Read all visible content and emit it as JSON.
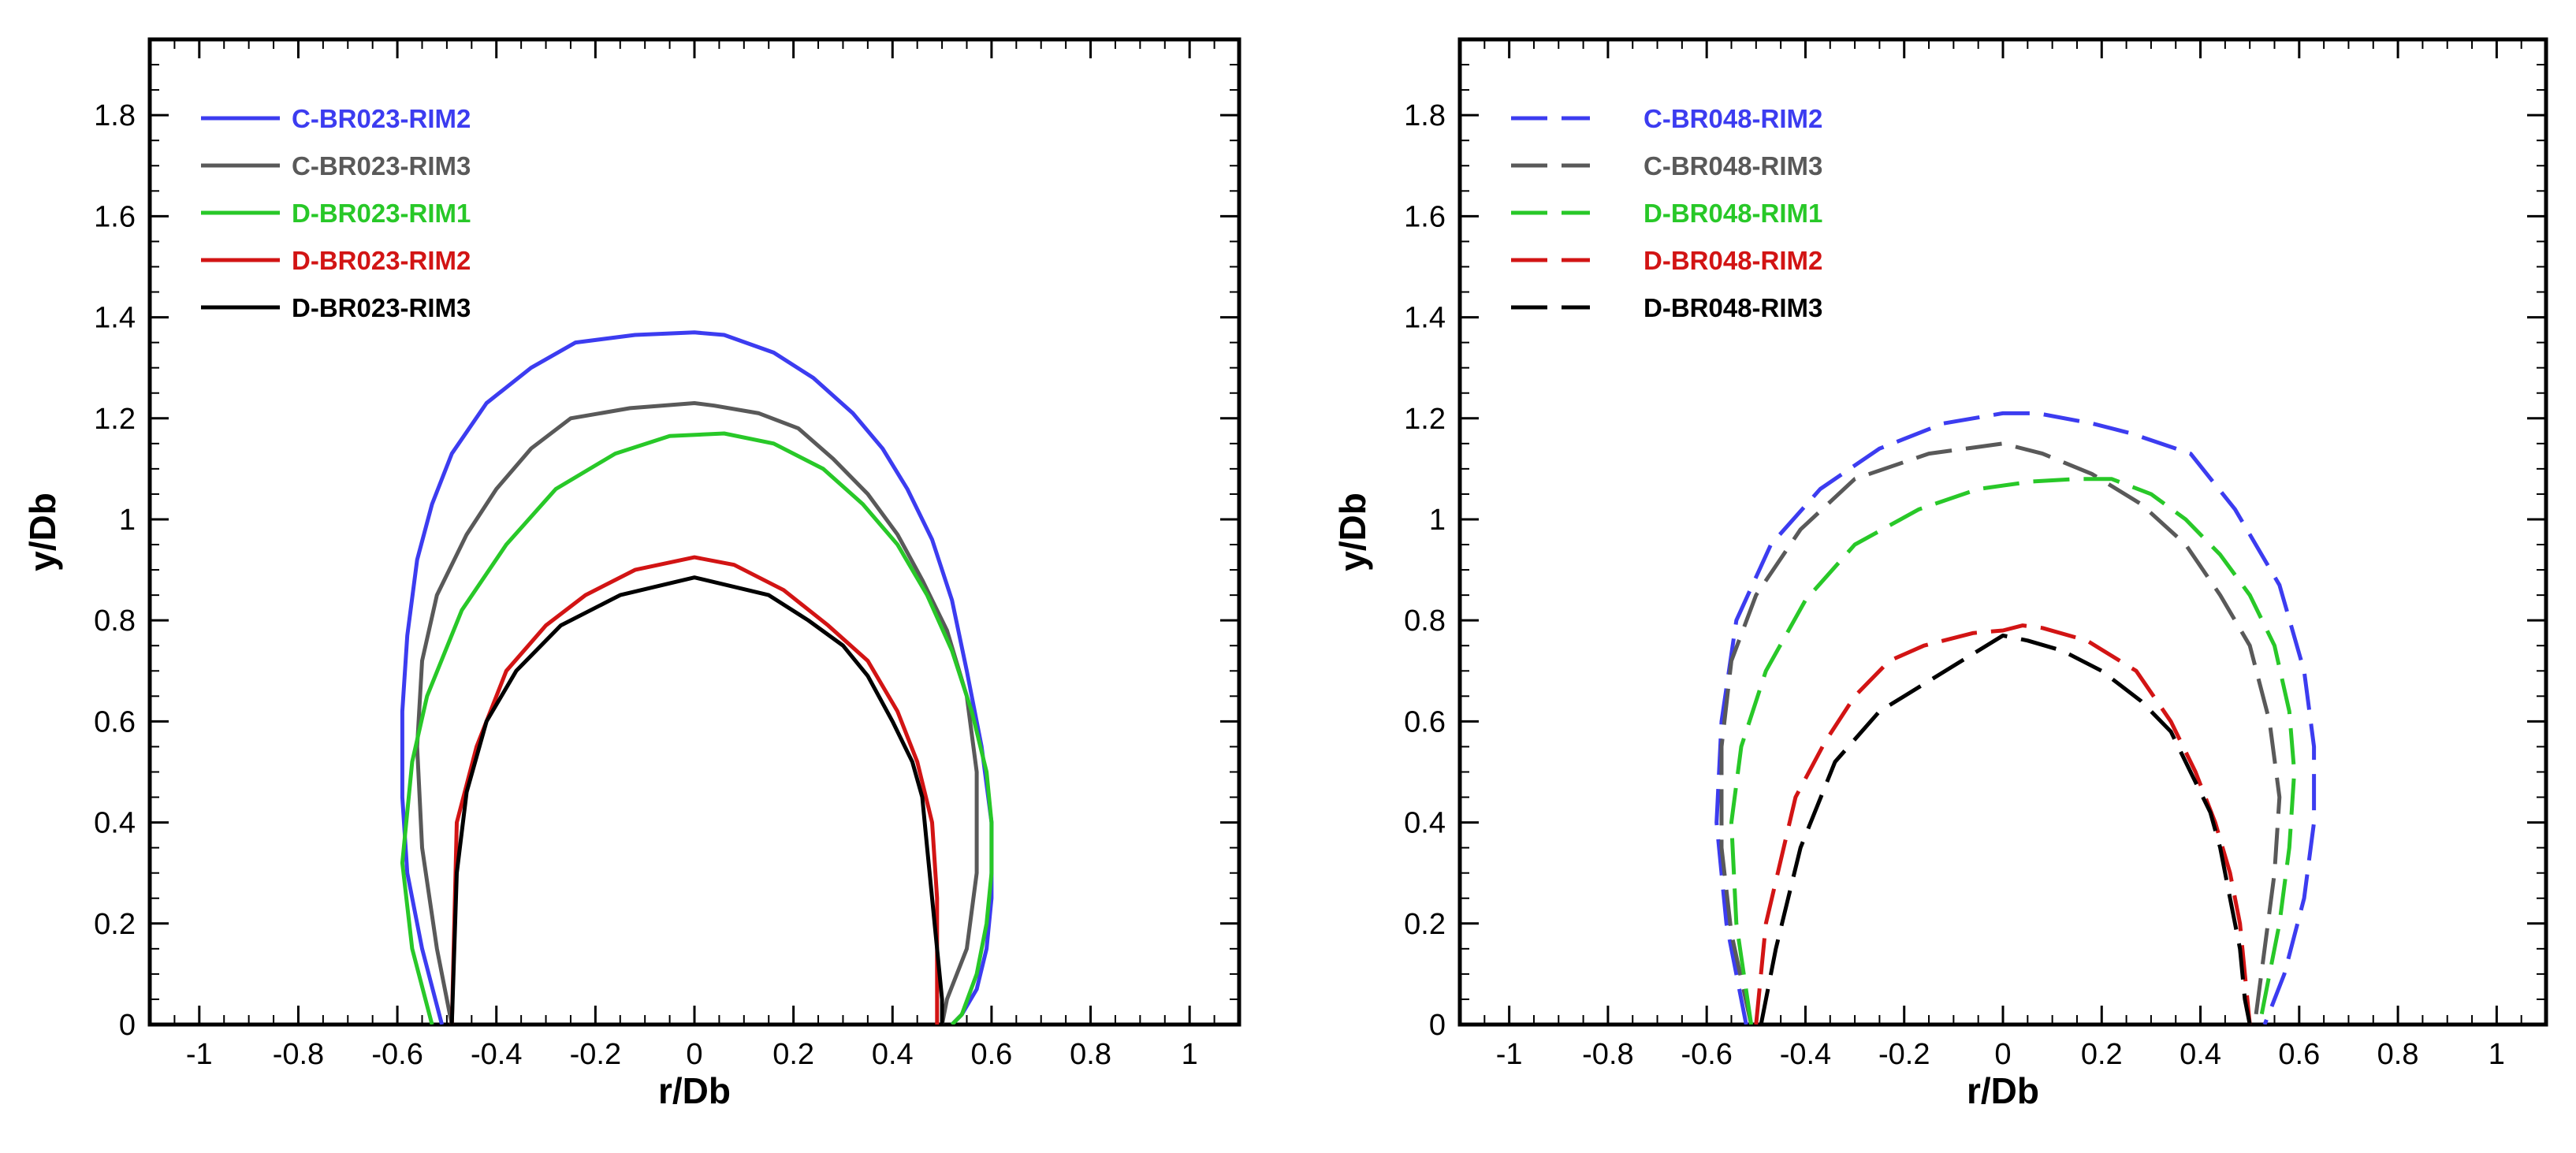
{
  "chart_data": [
    {
      "type": "line",
      "xlabel": "r/Db",
      "ylabel": "y/Db",
      "xlim": [
        -1.1,
        1.1
      ],
      "ylim": [
        0,
        1.95
      ],
      "xticks": [
        -1,
        -0.8,
        -0.6,
        -0.4,
        -0.2,
        0,
        0.2,
        0.4,
        0.6,
        0.8,
        1
      ],
      "xtick_labels": [
        "-1",
        "-0.8",
        "-0.6",
        "-0.4",
        "-0.2",
        "0",
        "0.2",
        "0.4",
        "0.6",
        "0.8",
        "1"
      ],
      "yticks": [
        0,
        0.2,
        0.4,
        0.6,
        0.8,
        1,
        1.2,
        1.4,
        1.6,
        1.8
      ],
      "ytick_labels": [
        "0",
        "0.2",
        "0.4",
        "0.6",
        "0.8",
        "1",
        "1.2",
        "1.4",
        "1.6",
        "1.8"
      ],
      "legend_position": "top-left",
      "series": [
        {
          "name": "C-BR023-RIM2",
          "color": "#3c3cf0",
          "dash": "solid",
          "x": [
            -0.51,
            -0.55,
            -0.58,
            -0.59,
            -0.59,
            -0.58,
            -0.56,
            -0.53,
            -0.49,
            -0.42,
            -0.33,
            -0.24,
            -0.12,
            0.0,
            0.06,
            0.16,
            0.24,
            0.32,
            0.38,
            0.43,
            0.48,
            0.52,
            0.55,
            0.58,
            0.6,
            0.6,
            0.59,
            0.57,
            0.54,
            0.52
          ],
          "y": [
            0,
            0.15,
            0.3,
            0.45,
            0.62,
            0.77,
            0.92,
            1.03,
            1.13,
            1.23,
            1.3,
            1.35,
            1.365,
            1.37,
            1.365,
            1.33,
            1.28,
            1.21,
            1.14,
            1.06,
            0.96,
            0.84,
            0.7,
            0.55,
            0.4,
            0.25,
            0.15,
            0.07,
            0.02,
            0
          ]
        },
        {
          "name": "C-BR023-RIM3",
          "color": "#595959",
          "dash": "solid",
          "x": [
            -0.49,
            -0.52,
            -0.55,
            -0.56,
            -0.55,
            -0.52,
            -0.46,
            -0.4,
            -0.33,
            -0.25,
            -0.13,
            0.0,
            0.04,
            0.13,
            0.21,
            0.28,
            0.35,
            0.41,
            0.46,
            0.51,
            0.55,
            0.57,
            0.57,
            0.55,
            0.51,
            0.5
          ],
          "y": [
            0,
            0.15,
            0.35,
            0.55,
            0.72,
            0.85,
            0.97,
            1.06,
            1.14,
            1.2,
            1.22,
            1.23,
            1.225,
            1.21,
            1.18,
            1.12,
            1.05,
            0.97,
            0.88,
            0.78,
            0.65,
            0.5,
            0.3,
            0.15,
            0.05,
            0
          ]
        },
        {
          "name": "D-BR023-RIM1",
          "color": "#28c828",
          "dash": "solid",
          "x": [
            -0.53,
            -0.57,
            -0.59,
            -0.57,
            -0.54,
            -0.47,
            -0.38,
            -0.28,
            -0.16,
            -0.05,
            0.06,
            0.16,
            0.26,
            0.34,
            0.41,
            0.47,
            0.52,
            0.56,
            0.59,
            0.6,
            0.6,
            0.59,
            0.57,
            0.54,
            0.52
          ],
          "y": [
            0,
            0.15,
            0.32,
            0.52,
            0.65,
            0.82,
            0.95,
            1.06,
            1.13,
            1.165,
            1.17,
            1.15,
            1.1,
            1.03,
            0.95,
            0.85,
            0.74,
            0.62,
            0.5,
            0.4,
            0.3,
            0.2,
            0.1,
            0.02,
            0
          ]
        },
        {
          "name": "D-BR023-RIM2",
          "color": "#d21414",
          "dash": "solid",
          "x": [
            -0.49,
            -0.48,
            -0.44,
            -0.38,
            -0.3,
            -0.22,
            -0.12,
            0.0,
            0.08,
            0.18,
            0.27,
            0.35,
            0.41,
            0.45,
            0.48,
            0.49,
            0.49,
            0.49
          ],
          "y": [
            0,
            0.4,
            0.55,
            0.7,
            0.79,
            0.85,
            0.9,
            0.925,
            0.91,
            0.86,
            0.79,
            0.72,
            0.62,
            0.52,
            0.4,
            0.25,
            0.12,
            0
          ]
        },
        {
          "name": "D-BR023-RIM3",
          "color": "#000000",
          "dash": "solid",
          "x": [
            -0.49,
            -0.48,
            -0.46,
            -0.42,
            -0.36,
            -0.27,
            -0.15,
            0.0,
            0.15,
            0.23,
            0.3,
            0.35,
            0.4,
            0.44,
            0.46,
            0.47,
            0.48,
            0.49,
            0.5,
            0.5
          ],
          "y": [
            0,
            0.3,
            0.46,
            0.6,
            0.7,
            0.79,
            0.85,
            0.885,
            0.85,
            0.8,
            0.75,
            0.69,
            0.6,
            0.52,
            0.45,
            0.35,
            0.25,
            0.15,
            0.05,
            0
          ]
        }
      ],
      "legend": {
        "entries": [
          "C-BR023-RIM2",
          "C-BR023-RIM3",
          "D-BR023-RIM1",
          "D-BR023-RIM2",
          "D-BR023-RIM3"
        ],
        "colors": [
          "#3c3cf0",
          "#595959",
          "#28c828",
          "#d21414",
          "#000000"
        ]
      }
    },
    {
      "type": "line",
      "xlabel": "r/Db",
      "ylabel": "y/Db",
      "xlim": [
        -1.1,
        1.1
      ],
      "ylim": [
        0,
        1.95
      ],
      "xticks": [
        -1,
        -0.8,
        -0.6,
        -0.4,
        -0.2,
        0,
        0.2,
        0.4,
        0.6,
        0.8,
        1
      ],
      "xtick_labels": [
        "-1",
        "-0.8",
        "-0.6",
        "-0.4",
        "-0.2",
        "0",
        "0.2",
        "0.4",
        "0.6",
        "0.8",
        "1"
      ],
      "yticks": [
        0,
        0.2,
        0.4,
        0.6,
        0.8,
        1,
        1.2,
        1.4,
        1.6,
        1.8
      ],
      "ytick_labels": [
        "0",
        "0.2",
        "0.4",
        "0.6",
        "0.8",
        "1",
        "1.2",
        "1.4",
        "1.6",
        "1.8"
      ],
      "legend_position": "top-left",
      "series": [
        {
          "name": "C-BR048-RIM2",
          "color": "#3c3cf0",
          "dash": "dashed",
          "x": [
            -0.52,
            -0.56,
            -0.58,
            -0.57,
            -0.54,
            -0.47,
            -0.37,
            -0.25,
            -0.12,
            0.0,
            0.07,
            0.18,
            0.26,
            0.38,
            0.47,
            0.56,
            0.61,
            0.63,
            0.63,
            0.61,
            0.57,
            0.53
          ],
          "y": [
            0,
            0.2,
            0.4,
            0.6,
            0.8,
            0.95,
            1.06,
            1.14,
            1.19,
            1.21,
            1.21,
            1.19,
            1.17,
            1.13,
            1.02,
            0.87,
            0.7,
            0.55,
            0.4,
            0.25,
            0.1,
            0
          ]
        },
        {
          "name": "C-BR048-RIM3",
          "color": "#595959",
          "dash": "dashed",
          "x": [
            -0.51,
            -0.55,
            -0.57,
            -0.57,
            -0.55,
            -0.5,
            -0.41,
            -0.3,
            -0.15,
            0.0,
            0.08,
            0.18,
            0.28,
            0.37,
            0.44,
            0.5,
            0.54,
            0.56,
            0.55,
            0.53,
            0.51
          ],
          "y": [
            0,
            0.18,
            0.35,
            0.55,
            0.72,
            0.85,
            0.98,
            1.08,
            1.13,
            1.15,
            1.13,
            1.09,
            1.03,
            0.95,
            0.85,
            0.75,
            0.6,
            0.45,
            0.3,
            0.15,
            0
          ]
        },
        {
          "name": "D-BR048-RIM1",
          "color": "#28c828",
          "dash": "dashed",
          "x": [
            -0.51,
            -0.54,
            -0.55,
            -0.53,
            -0.48,
            -0.4,
            -0.3,
            -0.17,
            -0.05,
            0.06,
            0.15,
            0.22,
            0.3,
            0.37,
            0.44,
            0.5,
            0.55,
            0.58,
            0.59,
            0.58,
            0.56,
            0.54,
            0.52
          ],
          "y": [
            0,
            0.2,
            0.4,
            0.55,
            0.7,
            0.84,
            0.95,
            1.02,
            1.06,
            1.075,
            1.08,
            1.08,
            1.05,
            1.0,
            0.93,
            0.85,
            0.75,
            0.62,
            0.5,
            0.35,
            0.2,
            0.1,
            0
          ]
        },
        {
          "name": "D-BR048-RIM2",
          "color": "#d21414",
          "dash": "dashed",
          "x": [
            -0.5,
            -0.48,
            -0.42,
            -0.36,
            -0.3,
            -0.23,
            -0.16,
            -0.06,
            0.0,
            0.04,
            0.08,
            0.17,
            0.27,
            0.34,
            0.39,
            0.43,
            0.46,
            0.48,
            0.49,
            0.5
          ],
          "y": [
            0,
            0.2,
            0.45,
            0.56,
            0.65,
            0.72,
            0.75,
            0.775,
            0.78,
            0.79,
            0.785,
            0.76,
            0.7,
            0.6,
            0.5,
            0.4,
            0.3,
            0.2,
            0.1,
            0
          ]
        },
        {
          "name": "D-BR048-RIM3",
          "color": "#000000",
          "dash": "dashed",
          "x": [
            -0.49,
            -0.46,
            -0.41,
            -0.34,
            -0.25,
            -0.15,
            -0.05,
            0.0,
            0.05,
            0.12,
            0.2,
            0.28,
            0.34,
            0.38,
            0.42,
            0.44,
            0.46,
            0.48,
            0.49,
            0.5
          ],
          "y": [
            0,
            0.15,
            0.35,
            0.52,
            0.62,
            0.68,
            0.74,
            0.77,
            0.76,
            0.74,
            0.7,
            0.64,
            0.58,
            0.5,
            0.42,
            0.35,
            0.25,
            0.15,
            0.05,
            0
          ]
        }
      ],
      "legend": {
        "entries": [
          "C-BR048-RIM2",
          "C-BR048-RIM3",
          "D-BR048-RIM1",
          "D-BR048-RIM2",
          "D-BR048-RIM3"
        ],
        "colors": [
          "#3c3cf0",
          "#595959",
          "#28c828",
          "#d21414",
          "#000000"
        ]
      }
    }
  ]
}
